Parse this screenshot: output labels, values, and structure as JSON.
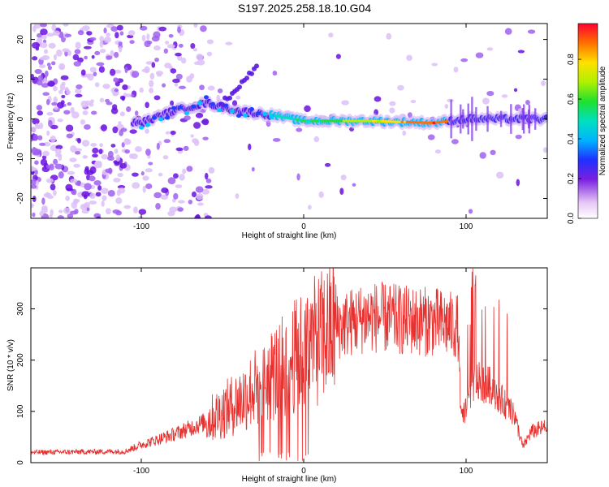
{
  "title": "S197.2025.258.18.10.G04",
  "chart_data": [
    {
      "type": "heatmap",
      "xlabel": "Height of straight line (km)",
      "ylabel": "Frequency (Hz)",
      "xlim": [
        -168,
        150
      ],
      "ylim": [
        -25,
        24
      ],
      "xticks": [
        -100,
        0,
        100
      ],
      "yticks": [
        -20,
        -10,
        0,
        10,
        20
      ],
      "colorbar": {
        "label": "Normalized spectral amplitude",
        "range": [
          0,
          0.98
        ],
        "ticks": [
          0.0,
          0.2,
          0.4,
          0.6,
          0.8
        ]
      },
      "ridge": [
        {
          "x": -100,
          "y": -1
        },
        {
          "x": -80,
          "y": 2
        },
        {
          "x": -60,
          "y": 4
        },
        {
          "x": -40,
          "y": 2
        },
        {
          "x": -20,
          "y": 1
        },
        {
          "x": 0,
          "y": -0.5
        },
        {
          "x": 40,
          "y": -0.5
        },
        {
          "x": 80,
          "y": -1
        },
        {
          "x": 100,
          "y": 0
        },
        {
          "x": 150,
          "y": 0
        }
      ]
    },
    {
      "type": "line",
      "xlabel": "Height of straight line (km)",
      "ylabel": "SNR (10 * v/v)",
      "xlim": [
        -168,
        150
      ],
      "ylim": [
        0,
        380
      ],
      "xticks": [
        -100,
        0,
        100
      ],
      "yticks": [
        0,
        100,
        200,
        300
      ],
      "series": [
        {
          "name": "SNR",
          "color": "#e8312f",
          "envelope": [
            {
              "x": -168,
              "y": 20
            },
            {
              "x": -110,
              "y": 22
            },
            {
              "x": -100,
              "y": 35
            },
            {
              "x": -80,
              "y": 55
            },
            {
              "x": -60,
              "y": 80
            },
            {
              "x": -40,
              "y": 120
            },
            {
              "x": -20,
              "y": 170
            },
            {
              "x": 0,
              "y": 220
            },
            {
              "x": 20,
              "y": 265
            },
            {
              "x": 40,
              "y": 285
            },
            {
              "x": 60,
              "y": 278
            },
            {
              "x": 80,
              "y": 275
            },
            {
              "x": 95,
              "y": 265
            },
            {
              "x": 97,
              "y": 80
            },
            {
              "x": 105,
              "y": 160
            },
            {
              "x": 115,
              "y": 150
            },
            {
              "x": 130,
              "y": 90
            },
            {
              "x": 135,
              "y": 30
            },
            {
              "x": 140,
              "y": 60
            },
            {
              "x": 150,
              "y": 70
            }
          ]
        }
      ]
    }
  ]
}
